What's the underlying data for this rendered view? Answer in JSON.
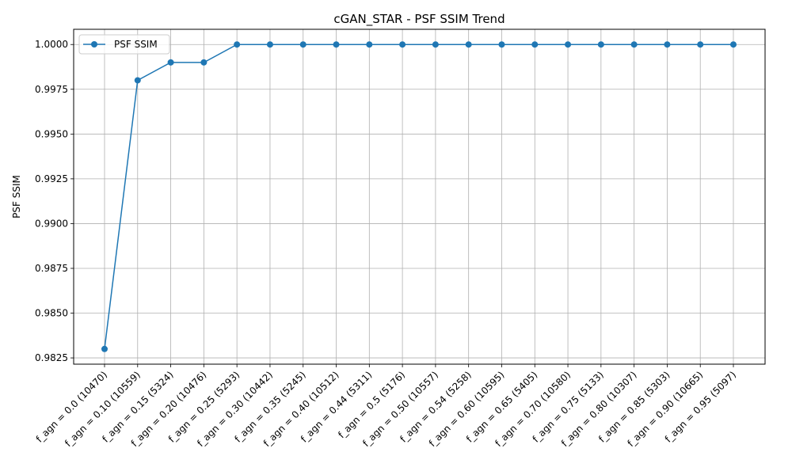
{
  "chart_data": {
    "type": "line",
    "title": "cGAN_STAR - PSF SSIM Trend",
    "xlabel": "",
    "ylabel": "PSF SSIM",
    "categories": [
      "f_agn = 0.0 (10470)",
      "f_agn = 0.10 (10559)",
      "f_agn = 0.15 (5324)",
      "f_agn = 0.20 (10476)",
      "f_agn = 0.25 (5293)",
      "f_agn = 0.30 (10442)",
      "f_agn = 0.35 (5245)",
      "f_agn = 0.40 (10512)",
      "f_agn = 0.44 (5311)",
      "f_agn = 0.5 (5176)",
      "f_agn = 0.50 (10557)",
      "f_agn = 0.54 (5258)",
      "f_agn = 0.60 (10595)",
      "f_agn = 0.65 (5405)",
      "f_agn = 0.70 (10580)",
      "f_agn = 0.75 (5133)",
      "f_agn = 0.80 (10307)",
      "f_agn = 0.85 (5303)",
      "f_agn = 0.90 (10665)",
      "f_agn = 0.95 (5097)"
    ],
    "series": [
      {
        "name": "PSF SSIM",
        "color": "#1f77b4",
        "values": [
          0.983,
          0.998,
          0.999,
          0.999,
          1.0,
          1.0,
          1.0,
          1.0,
          1.0,
          1.0,
          1.0,
          1.0,
          1.0,
          1.0,
          1.0,
          1.0,
          1.0,
          1.0,
          1.0,
          1.0
        ]
      }
    ],
    "yticks": [
      "0.9825",
      "0.9850",
      "0.9875",
      "0.9900",
      "0.9925",
      "0.9950",
      "0.9975",
      "1.0000"
    ],
    "ylim": [
      0.98215,
      1.00085
    ],
    "grid": true,
    "legend_position": "top-left"
  }
}
